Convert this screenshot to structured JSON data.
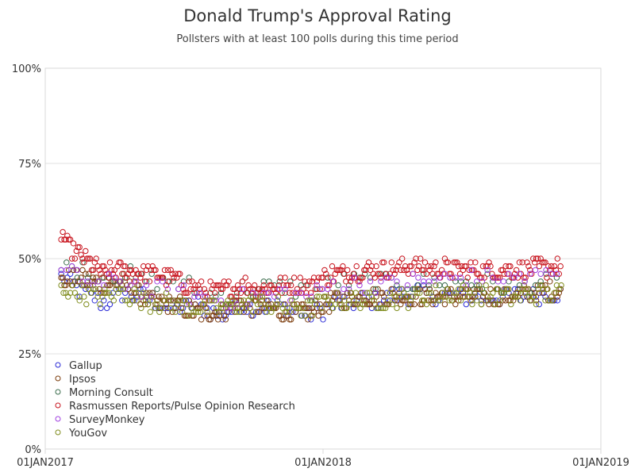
{
  "chart_data": {
    "type": "scatter",
    "title": "Donald Trump's Approval Rating",
    "subtitle": "Pollsters with at least 100 polls during this time period",
    "xlabel": "",
    "ylabel": "",
    "x_axis": {
      "type": "date",
      "range": [
        "2017-01-01",
        "2019-01-01"
      ],
      "ticks": [
        "2017-01-01",
        "2018-01-01",
        "2019-01-01"
      ],
      "tick_labels": [
        "01JAN2017",
        "01JAN2018",
        "01JAN2019"
      ]
    },
    "y_axis": {
      "range": [
        0,
        100
      ],
      "ticks": [
        0,
        25,
        50,
        75,
        100
      ],
      "tick_labels": [
        "0%",
        "25%",
        "50%",
        "75%",
        "100%"
      ],
      "grid": true
    },
    "legend_position": "bottom-left-inside",
    "marker": "open-circle",
    "series": [
      {
        "name": "Gallup",
        "color": "#2a2ad6",
        "x_start": "2017-01-22",
        "x_end": "2018-11-10",
        "step_days": 4,
        "trend_dates": [
          "2017-01-22",
          "2017-02-15",
          "2017-03-20",
          "2017-04-10",
          "2017-05-15",
          "2017-06-15",
          "2017-07-20",
          "2017-08-15",
          "2017-09-15",
          "2017-10-15",
          "2017-11-15",
          "2017-12-15",
          "2018-01-15",
          "2018-03-01",
          "2018-05-01",
          "2018-07-01",
          "2018-09-01",
          "2018-11-10"
        ],
        "trend_values": [
          45,
          42,
          38,
          41,
          40,
          37,
          38,
          35,
          38,
          37,
          37,
          35,
          38,
          39,
          41,
          40,
          40,
          41
        ]
      },
      {
        "name": "Ipsos",
        "color": "#7a3a0a",
        "x_start": "2017-01-22",
        "x_end": "2018-11-10",
        "step_days": 2,
        "trend_dates": [
          "2017-01-22",
          "2017-02-15",
          "2017-03-20",
          "2017-04-10",
          "2017-05-15",
          "2017-06-15",
          "2017-07-20",
          "2017-08-15",
          "2017-09-15",
          "2017-10-15",
          "2017-11-15",
          "2017-12-15",
          "2018-01-15",
          "2018-03-01",
          "2018-05-01",
          "2018-07-01",
          "2018-09-01",
          "2018-11-10"
        ],
        "trend_values": [
          44,
          45,
          43,
          44,
          39,
          38,
          36,
          36,
          38,
          37,
          36,
          36,
          39,
          40,
          40,
          40,
          40,
          42
        ]
      },
      {
        "name": "Morning Consult",
        "color": "#3c6e4e",
        "x_start": "2017-01-22",
        "x_end": "2018-11-10",
        "step_days": 7,
        "trend_dates": [
          "2017-01-22",
          "2017-02-15",
          "2017-03-20",
          "2017-04-10",
          "2017-05-15",
          "2017-06-15",
          "2017-07-20",
          "2017-08-15",
          "2017-09-15",
          "2017-10-15",
          "2017-11-15",
          "2017-12-15",
          "2018-01-15",
          "2018-03-01",
          "2018-05-01",
          "2018-07-01",
          "2018-09-01",
          "2018-11-10"
        ],
        "trend_values": [
          47,
          48,
          46,
          46,
          44,
          44,
          42,
          40,
          42,
          42,
          43,
          41,
          44,
          44,
          44,
          44,
          43,
          44
        ]
      },
      {
        "name": "Rasmussen Reports/Pulse Opinion Research",
        "color": "#c8141e",
        "x_start": "2017-01-22",
        "x_end": "2018-11-10",
        "step_days": 2,
        "trend_dates": [
          "2017-01-22",
          "2017-02-01",
          "2017-02-15",
          "2017-03-20",
          "2017-04-10",
          "2017-05-15",
          "2017-06-15",
          "2017-07-20",
          "2017-08-15",
          "2017-09-15",
          "2017-10-15",
          "2017-11-15",
          "2017-12-15",
          "2018-01-15",
          "2018-03-01",
          "2018-05-01",
          "2018-07-01",
          "2018-09-01",
          "2018-11-10"
        ],
        "trend_values": [
          57,
          53,
          51,
          46,
          47,
          46,
          45,
          42,
          41,
          43,
          42,
          43,
          43,
          46,
          47,
          48,
          47,
          47,
          48
        ]
      },
      {
        "name": "SurveyMonkey",
        "color": "#a040e0",
        "x_start": "2017-01-22",
        "x_end": "2018-11-10",
        "step_days": 7,
        "trend_dates": [
          "2017-01-22",
          "2017-02-15",
          "2017-03-20",
          "2017-04-10",
          "2017-05-15",
          "2017-06-15",
          "2017-07-20",
          "2017-08-15",
          "2017-09-15",
          "2017-10-15",
          "2017-11-15",
          "2017-12-15",
          "2018-01-15",
          "2018-03-01",
          "2018-05-01",
          "2018-07-01",
          "2018-09-01",
          "2018-11-10"
        ],
        "trend_values": [
          46,
          45,
          43,
          44,
          42,
          41,
          40,
          39,
          40,
          40,
          41,
          40,
          43,
          43,
          44,
          45,
          45,
          46
        ]
      },
      {
        "name": "YouGov",
        "color": "#7f8c1c",
        "x_start": "2017-01-22",
        "x_end": "2018-11-10",
        "step_days": 3,
        "trend_dates": [
          "2017-01-22",
          "2017-02-15",
          "2017-03-20",
          "2017-04-10",
          "2017-05-15",
          "2017-06-15",
          "2017-07-20",
          "2017-08-15",
          "2017-09-15",
          "2017-10-15",
          "2017-11-15",
          "2017-12-15",
          "2018-01-15",
          "2018-03-01",
          "2018-05-01",
          "2018-07-01",
          "2018-09-01",
          "2018-11-10"
        ],
        "trend_values": [
          42,
          41,
          40,
          41,
          39,
          38,
          37,
          37,
          38,
          38,
          37,
          37,
          39,
          39,
          40,
          41,
          40,
          41
        ]
      }
    ]
  }
}
